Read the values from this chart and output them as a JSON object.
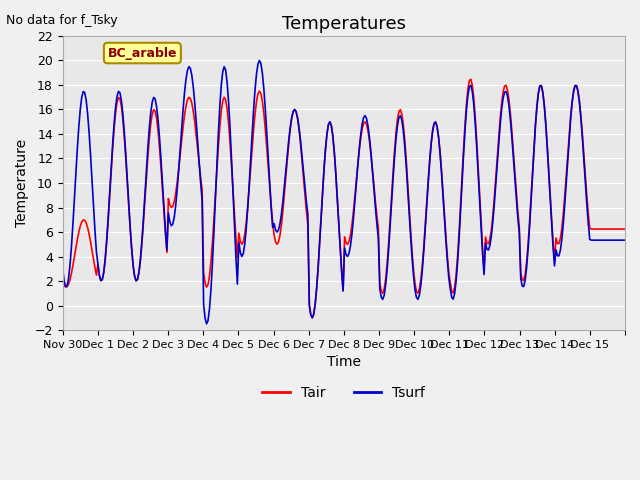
{
  "title": "Temperatures",
  "xlabel": "Time",
  "ylabel": "Temperature",
  "top_left_text": "No data for f_Tsky",
  "legend_label_text": "BC_arable",
  "ylim": [
    -2,
    22
  ],
  "yticks": [
    -2,
    0,
    2,
    4,
    6,
    8,
    10,
    12,
    14,
    16,
    18,
    20,
    22
  ],
  "xtick_labels": [
    "Nov 30",
    "Dec 1",
    "Dec 2",
    "Dec 3",
    "Dec 4",
    "Dec 5",
    "Dec 6",
    "Dec 7",
    "Dec 8",
    "Dec 9",
    "Dec 10",
    "Dec 11",
    "Dec 12",
    "Dec 13",
    "Dec 14",
    "Dec 15",
    ""
  ],
  "tair_color": "#ff0000",
  "tsurf_color": "#0000cc",
  "background_color": "#e8e8e8",
  "fig_color": "#f0f0f0",
  "legend_tair": "Tair",
  "legend_tsurf": "Tsurf",
  "title_fontsize": 13,
  "label_fontsize": 10,
  "tick_fontsize": 8,
  "n_days": 16,
  "pts_per_day": 24,
  "peaks_air": [
    7.0,
    17.0,
    16.0,
    17.0,
    17.0,
    17.5,
    16.0,
    15.0,
    15.0,
    16.0,
    15.0,
    18.5,
    18.0,
    18.0,
    18.0,
    7.0
  ],
  "troughs_air": [
    1.5,
    2.0,
    2.0,
    8.0,
    1.5,
    5.0,
    5.0,
    -1.0,
    5.0,
    1.0,
    1.0,
    1.0,
    5.0,
    2.0,
    5.0,
    6.0
  ],
  "peaks_surf": [
    17.5,
    17.5,
    17.0,
    19.5,
    19.5,
    20.0,
    16.0,
    15.0,
    15.5,
    15.5,
    15.0,
    18.0,
    17.5,
    18.0,
    18.0,
    7.5
  ],
  "troughs_surf": [
    1.5,
    2.0,
    2.0,
    6.5,
    -1.5,
    4.0,
    6.0,
    -1.0,
    4.0,
    0.5,
    0.5,
    0.5,
    4.5,
    1.5,
    4.0,
    6.0
  ]
}
